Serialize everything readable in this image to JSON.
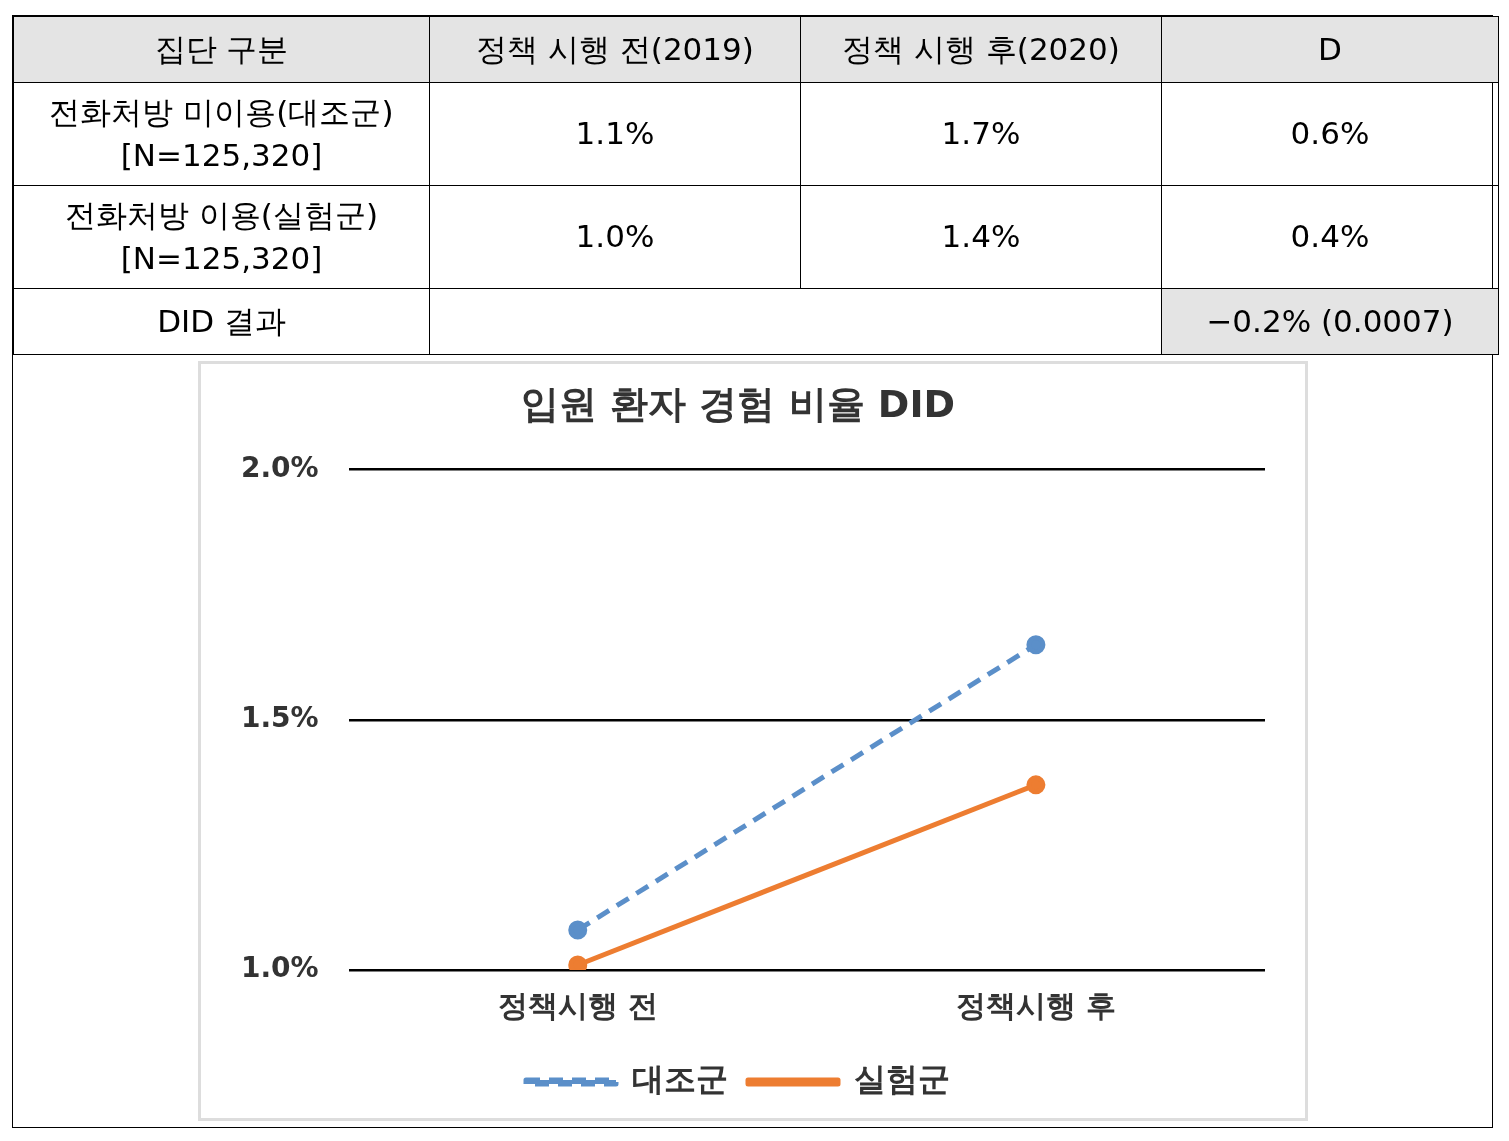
{
  "chart_data": [
    {
      "type": "other",
      "annotations": [
        "집단 구분",
        "정책 시행 전(2019)",
        "정책 시행 후(2020)",
        "D",
        "전화처방 미이용(대조군)\n[N=125,320]",
        "1.1%",
        "1.7%",
        "0.6%",
        "전화처방 이용(실험군)\n[N=125,320]",
        "1.0%",
        "1.4%",
        "0.4%",
        "DID 결과",
        "−0.2% (0.0007)"
      ]
    },
    {
      "type": "line",
      "title": "입원 환자 경험 비율 DID",
      "categories": [
        "정책시행 전",
        "정책시행 후"
      ],
      "series": [
        {
          "name": "대조군",
          "color": "#5b8fc9",
          "values": [
            1.08,
            1.65
          ],
          "line_style": "dashed"
        },
        {
          "name": "실험군",
          "color": "#ed7d31",
          "values": [
            1.01,
            1.37
          ],
          "line_style": "solid"
        }
      ],
      "ylim": [
        1,
        2
      ],
      "yticks": [
        {
          "value": 1,
          "label": "1.0%"
        },
        {
          "value": 1.5,
          "label": "1.5%"
        },
        {
          "value": 2,
          "label": "2.0%"
        }
      ],
      "grid": "y",
      "legend": "bottom",
      "marker": "circle"
    }
  ]
}
